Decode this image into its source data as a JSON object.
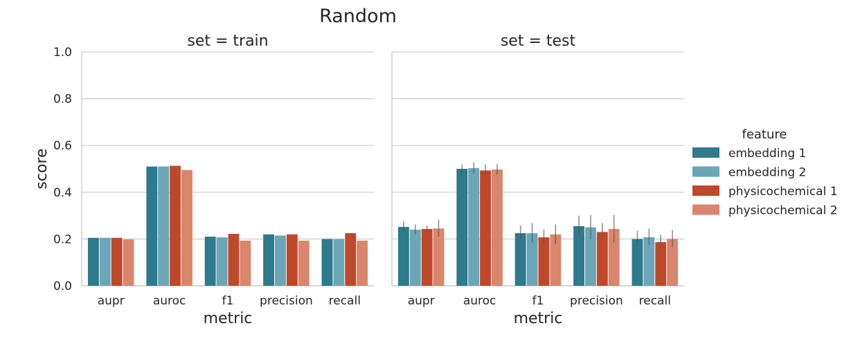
{
  "chart_data": {
    "type": "bar",
    "title": "Random",
    "ylabel": "score",
    "xlabel": "metric",
    "ylim": [
      0.0,
      1.0
    ],
    "yticks": [
      "0.0",
      "0.2",
      "0.4",
      "0.6",
      "0.8",
      "1.0"
    ],
    "grid": "horizontal",
    "categories": [
      "aupr",
      "auroc",
      "f1",
      "precision",
      "recall"
    ],
    "legend": {
      "title": "feature",
      "position": "right"
    },
    "series": [
      {
        "name": "embedding 1",
        "color": "#2f7a8c"
      },
      {
        "name": "embedding 2",
        "color": "#6aa6b8"
      },
      {
        "name": "physicochemical 1",
        "color": "#c0482a"
      },
      {
        "name": "physicochemical 2",
        "color": "#d9866d"
      }
    ],
    "panels": [
      {
        "title": "set = train",
        "values": [
          [
            0.205,
            0.51,
            0.21,
            0.22,
            0.2
          ],
          [
            0.205,
            0.51,
            0.207,
            0.215,
            0.2
          ],
          [
            0.205,
            0.513,
            0.222,
            0.22,
            0.225
          ],
          [
            0.198,
            0.495,
            0.193,
            0.193,
            0.193
          ]
        ],
        "errors": null
      },
      {
        "title": "set = test",
        "values": [
          [
            0.252,
            0.5,
            0.225,
            0.255,
            0.2
          ],
          [
            0.24,
            0.503,
            0.225,
            0.25,
            0.208
          ],
          [
            0.243,
            0.493,
            0.207,
            0.23,
            0.187
          ],
          [
            0.245,
            0.497,
            0.22,
            0.243,
            0.2
          ]
        ],
        "errors": [
          [
            [
              0.23,
              0.275
            ],
            [
              0.482,
              0.518
            ],
            [
              0.195,
              0.258
            ],
            [
              0.215,
              0.3
            ],
            [
              0.17,
              0.235
            ]
          ],
          [
            [
              0.22,
              0.262
            ],
            [
              0.48,
              0.528
            ],
            [
              0.185,
              0.268
            ],
            [
              0.2,
              0.302
            ],
            [
              0.175,
              0.245
            ]
          ],
          [
            [
              0.228,
              0.258
            ],
            [
              0.468,
              0.518
            ],
            [
              0.175,
              0.24
            ],
            [
              0.2,
              0.268
            ],
            [
              0.16,
              0.218
            ]
          ],
          [
            [
              0.21,
              0.282
            ],
            [
              0.475,
              0.52
            ],
            [
              0.18,
              0.262
            ],
            [
              0.185,
              0.302
            ],
            [
              0.165,
              0.238
            ]
          ]
        ]
      }
    ]
  }
}
